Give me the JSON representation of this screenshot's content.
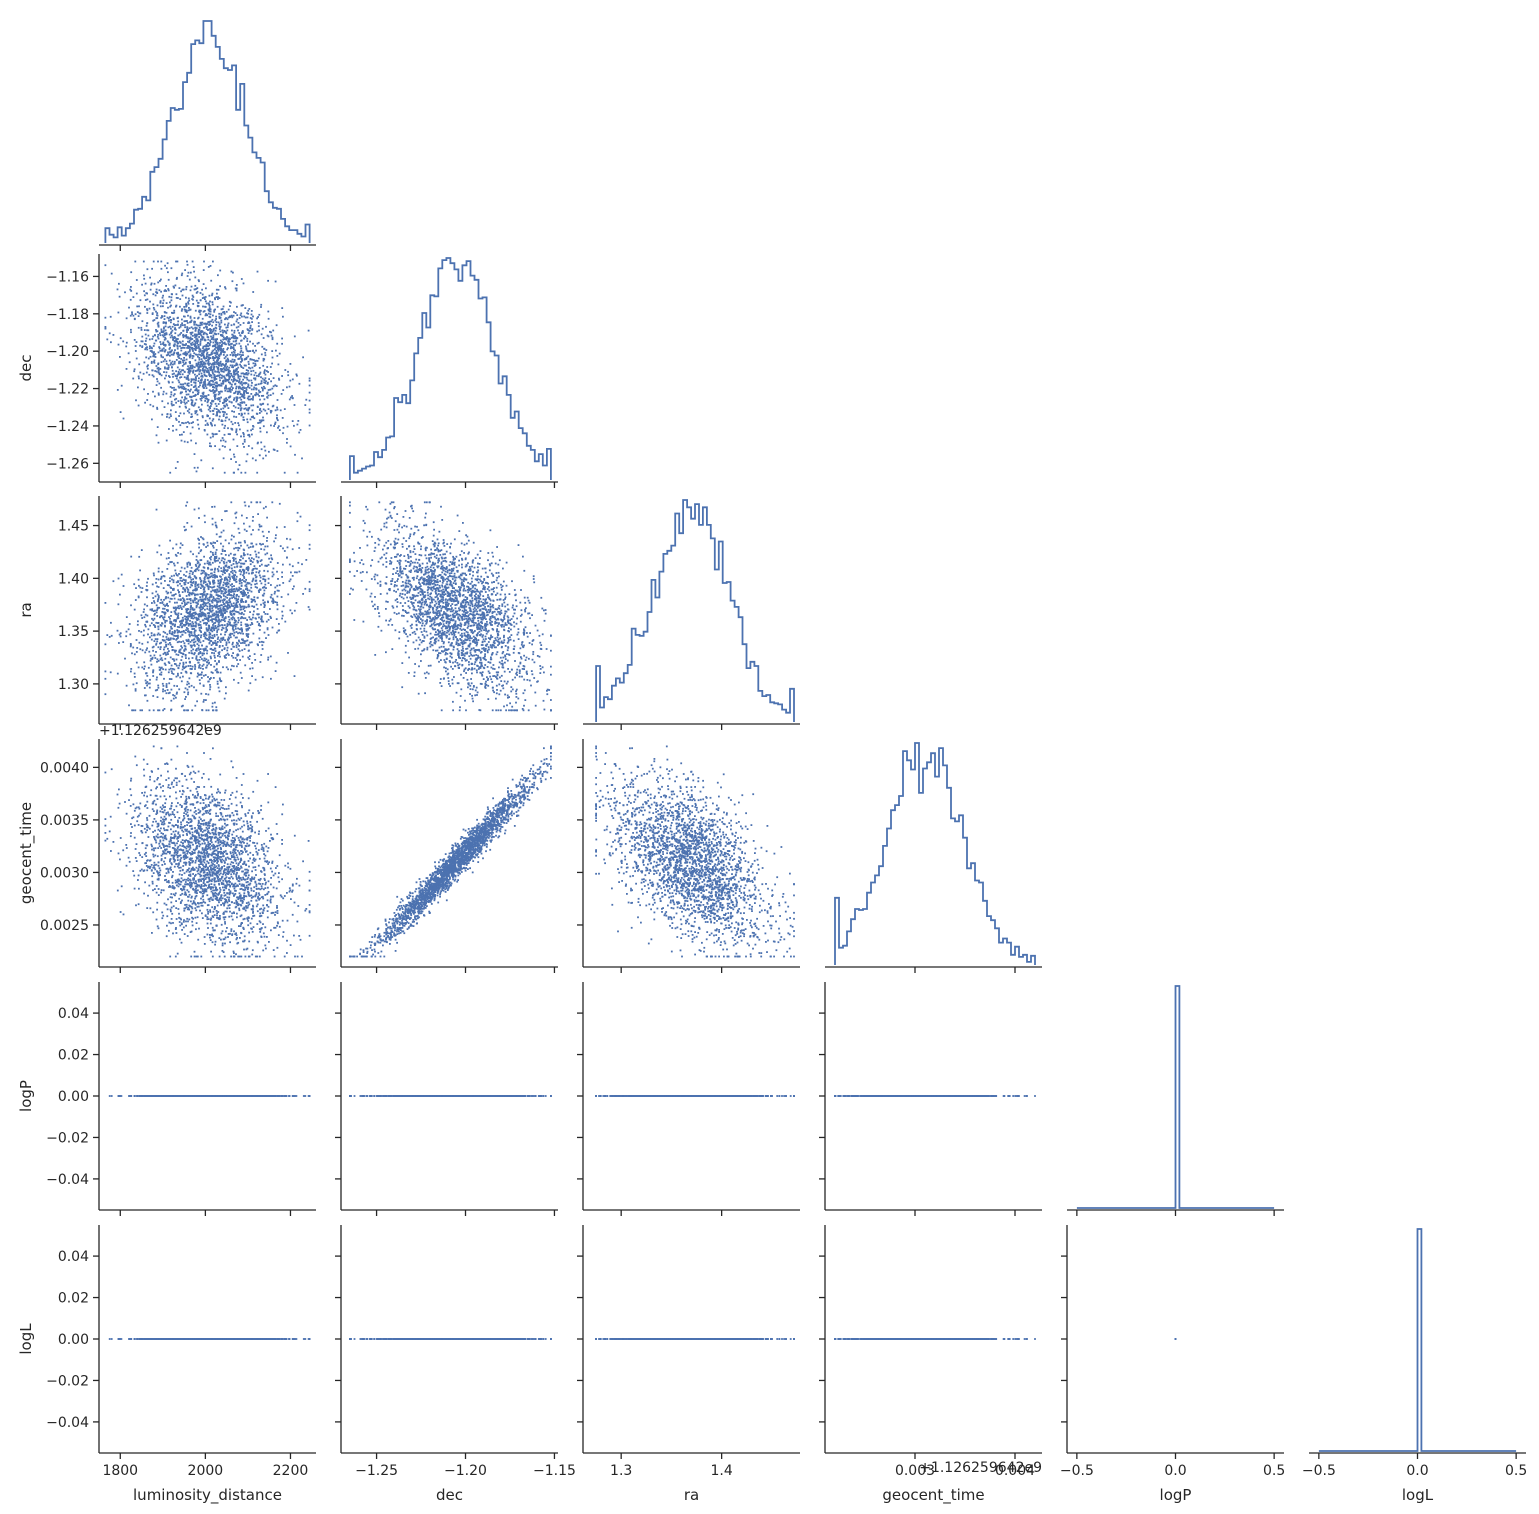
{
  "colors": {
    "series": "#4c72b0",
    "axis": "#262626",
    "background": "#ffffff"
  },
  "chart_data": {
    "type": "scatter",
    "layout": "corner-pairplot",
    "diag_kind": "step-histogram",
    "variables": [
      "luminosity_distance",
      "dec",
      "ra",
      "geocent_time",
      "logP",
      "logL"
    ],
    "offset_label": "+1.126259642e9",
    "offset_value": 1126259642.4,
    "ranges": {
      "luminosity_distance": [
        1750,
        2260
      ],
      "dec": [
        -1.27,
        -1.148
      ],
      "ra": [
        1.262,
        1.478
      ],
      "geocent_time": [
        0.0021,
        0.00427
      ],
      "logP": [
        -0.055,
        0.055
      ],
      "logL": [
        -0.055,
        0.055
      ]
    },
    "tick_values": {
      "luminosity_distance": [
        1800,
        2000,
        2200
      ],
      "dec": [
        -1.25,
        -1.2,
        -1.15
      ],
      "ra": [
        1.3,
        1.4
      ],
      "geocent_time": [
        0.003,
        0.004
      ],
      "logP": [
        -0.5,
        0.0,
        0.5
      ],
      "logL": [
        -0.5,
        0.0,
        0.5
      ]
    },
    "row_ticks": {
      "dec": [
        -1.16,
        -1.18,
        -1.2,
        -1.22,
        -1.24,
        -1.26
      ],
      "ra": [
        1.45,
        1.4,
        1.35,
        1.3
      ],
      "geocent_time": [
        0.004,
        0.0035,
        0.003,
        0.0025
      ],
      "logP": [
        0.04,
        0.02,
        0.0,
        -0.02,
        -0.04
      ],
      "logL": [
        0.04,
        0.02,
        0.0,
        -0.02,
        -0.04
      ]
    },
    "tick_labels": {
      "x": {
        "luminosity_distance": [
          "1800",
          "2000",
          "2200"
        ],
        "dec": [
          "−1.25",
          "−1.20",
          "−1.15"
        ],
        "ra": [
          "1.3",
          "1.4"
        ],
        "geocent_time": [
          "0.003",
          "0.004"
        ],
        "logP": [
          "−0.5",
          "0.0",
          "0.5"
        ],
        "logL": [
          "−0.5",
          "0.0",
          "0.5"
        ]
      },
      "y": {
        "dec": [
          "−1.16",
          "−1.18",
          "−1.20",
          "−1.22",
          "−1.24",
          "−1.26"
        ],
        "ra": [
          "1.45",
          "1.40",
          "1.35",
          "1.30"
        ],
        "geocent_time": [
          "0.0040",
          "0.0035",
          "0.0030",
          "0.0025"
        ],
        "logP": [
          "0.04",
          "0.02",
          "0.00",
          "−0.02",
          "−0.04"
        ],
        "logL": [
          "0.04",
          "0.02",
          "0.00",
          "−0.02",
          "−0.04"
        ]
      }
    },
    "distributions": {
      "luminosity_distance": {
        "mean": 2010,
        "std": 85,
        "min": 1765,
        "max": 2245
      },
      "dec": {
        "mean": -1.205,
        "std": 0.021,
        "min": -1.265,
        "max": -1.152
      },
      "ra": {
        "mean": 1.37,
        "std": 0.037,
        "min": 1.275,
        "max": 1.472
      },
      "geocent_time": {
        "mean": 0.0031,
        "std": 0.00038,
        "min": 0.0022,
        "max": 0.0042
      },
      "logP": {
        "constant": 0
      },
      "logL": {
        "constant": 0
      }
    },
    "correlations": {
      "dec|luminosity_distance": -0.35,
      "ra|luminosity_distance": 0.35,
      "ra|dec": -0.55,
      "geocent_time|luminosity_distance": -0.35,
      "geocent_time|dec": 0.98,
      "geocent_time|ra": -0.55
    },
    "sample_count": 5000,
    "histogram_bins": 50,
    "grid": false,
    "legend": "none"
  },
  "labels": {
    "x": {
      "luminosity_distance": "luminosity_distance",
      "dec": "dec",
      "ra": "ra",
      "geocent_time": "geocent_time",
      "logP": "logP",
      "logL": "logL"
    },
    "y": {
      "dec": "dec",
      "ra": "ra",
      "geocent_time": "geocent_time",
      "logP": "logP",
      "logL": "logL"
    }
  }
}
